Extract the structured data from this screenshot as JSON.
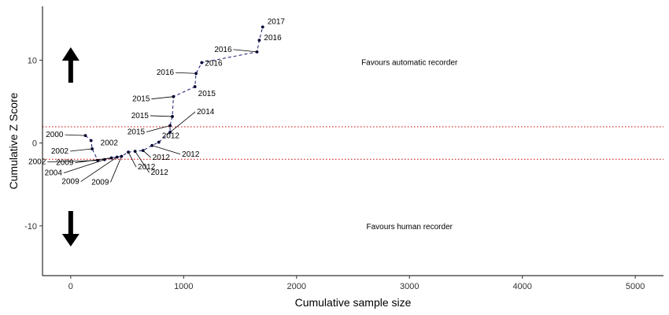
{
  "chart_data": {
    "type": "line",
    "title": "",
    "xlabel": "Cumulative sample size",
    "ylabel": "Cumulative Z Score",
    "xlim": [
      -250,
      5250
    ],
    "ylim": [
      -16,
      16.5
    ],
    "xticks": [
      0,
      1000,
      2000,
      3000,
      4000,
      5000
    ],
    "yticks": [
      -10,
      0,
      10
    ],
    "grid": false,
    "legend": "none",
    "threshold_lines": [
      1.96,
      -1.96
    ],
    "colors": {
      "line": "#191970",
      "point": "#000033",
      "threshold": "#cc0000",
      "arrow": "#000000"
    },
    "series": [
      {
        "x": [
          130,
          180,
          190,
          240,
          300,
          360,
          410,
          450,
          510,
          570,
          640,
          720,
          780,
          880,
          880,
          900,
          910,
          1100,
          1110,
          1160,
          1650,
          1670,
          1700
        ],
        "y": [
          0.9,
          0.3,
          -0.7,
          -2.1,
          -2.0,
          -1.8,
          -1.7,
          -1.6,
          -1.1,
          -1.0,
          -0.9,
          -0.3,
          0.1,
          1.3,
          2.1,
          3.2,
          5.6,
          6.8,
          8.4,
          9.7,
          11.0,
          12.4,
          14.0
        ],
        "labels": [
          "2000",
          "2002",
          "2002",
          "2002",
          "2004",
          "2009",
          "2009",
          "2009",
          "2012",
          "2012",
          "2012",
          "2012",
          "2012",
          "2014",
          "2015",
          "2015",
          "2015",
          "2015",
          "2016",
          "2016",
          "2016",
          "2016",
          "2017"
        ]
      }
    ],
    "annotations": [
      {
        "text": "Favours automatic recorder",
        "x": 3000,
        "y": 9.8,
        "arrow": "up"
      },
      {
        "text": "Favours human recorder",
        "x": 3000,
        "y": -10,
        "arrow": "down"
      }
    ]
  }
}
